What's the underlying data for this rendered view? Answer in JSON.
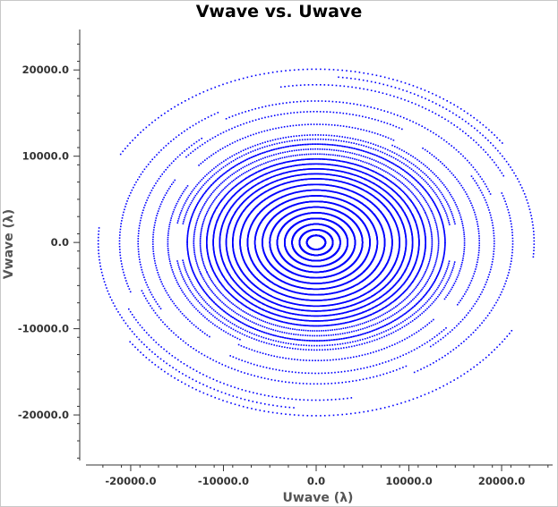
{
  "window": {
    "frame_color": "#c8c8c8"
  },
  "chart_data": {
    "type": "scatter",
    "title": "Vwave vs. Uwave",
    "xlabel": "Uwave (λ)",
    "ylabel": "Vwave (λ)",
    "xlim": [
      -25500,
      25500
    ],
    "ylim": [
      -25800,
      25000
    ],
    "xticks": [
      -20000,
      -10000,
      0,
      10000,
      20000
    ],
    "xtick_labels": [
      "-20000.0",
      "-10000.0",
      "0.0",
      "10000.0",
      "20000.0"
    ],
    "yticks": [
      -20000,
      -10000,
      0,
      10000,
      20000
    ],
    "ytick_labels": [
      "-20000.0",
      "-10000.0",
      "0.0",
      "10000.0",
      "20000.0"
    ],
    "grid": false,
    "legend": "none",
    "marker": "dots forming elliptical uv-coverage tracks",
    "series": [
      {
        "color": "#0000ff",
        "tracks": [
          {
            "r": 24500,
            "d0": 35,
            "d1": 150
          },
          {
            "r": 23500,
            "d0": 175,
            "d1": 265
          },
          {
            "r": 22300,
            "d0": 25,
            "d1": 100
          },
          {
            "r": 21200,
            "d0": 120,
            "d1": 200
          },
          {
            "r": 20000,
            "d0": 200,
            "d1": 300
          },
          {
            "r": 19200,
            "d0": 310,
            "d1": 390
          },
          {
            "r": 18500,
            "d0": 60,
            "d1": 140
          },
          {
            "r": 17600,
            "d0": 150,
            "d1": 230
          },
          {
            "r": 16700,
            "d0": 240,
            "d1": 320
          },
          {
            "r": 16000,
            "d0": 330,
            "d1": 420
          },
          {
            "r": 15200,
            "d0": 10,
            "d1": 170
          },
          {
            "r": 14600,
            "d0": 190,
            "d1": 350
          },
          {
            "r": 13900,
            "d0": 0,
            "d1": 360
          },
          {
            "r": 13200,
            "d0": 20,
            "d1": 200
          },
          {
            "r": 12500,
            "d0": 200,
            "d1": 380
          },
          {
            "r": 11800,
            "d0": 0,
            "d1": 360
          },
          {
            "r": 11100,
            "d0": 0,
            "d1": 360
          },
          {
            "r": 10400,
            "d0": 0,
            "d1": 360
          },
          {
            "r": 9700,
            "d0": 0,
            "d1": 360
          },
          {
            "r": 9000,
            "d0": 0,
            "d1": 360
          },
          {
            "r": 8200,
            "d0": 0,
            "d1": 360
          },
          {
            "r": 7400,
            "d0": 0,
            "d1": 360
          },
          {
            "r": 6600,
            "d0": 0,
            "d1": 360
          },
          {
            "r": 5800,
            "d0": 0,
            "d1": 360
          },
          {
            "r": 5000,
            "d0": 0,
            "d1": 360
          },
          {
            "r": 4200,
            "d0": 0,
            "d1": 360
          },
          {
            "r": 3400,
            "d0": 0,
            "d1": 360
          },
          {
            "r": 2600,
            "d0": 0,
            "d1": 360
          },
          {
            "r": 1800,
            "d0": 0,
            "d1": 360
          },
          {
            "r": 1000,
            "d0": 0,
            "d1": 360
          }
        ]
      }
    ]
  }
}
